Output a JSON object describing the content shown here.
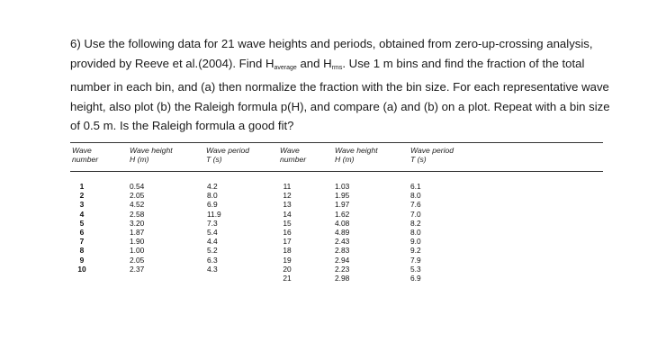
{
  "problem": {
    "line1": "6) Use the following data for 21 wave heights and periods, obtained from zero-up-crossing analysis,",
    "line2": "provided by Reeve et al.(2004).  Find H",
    "sub_average": "average",
    "and_text": " and H",
    "sub_rms": "rms",
    "line2_end": ". Use 1 m bins and find the fraction of the total",
    "line3": "number in each bin, and (a) then normalize the fraction with the bin size. For each representative wave",
    "line4": "height, also plot (b) the Raleigh formula p(H), and compare (a) and (b) on a plot. Repeat with a bin size",
    "line5": "of 0.5 m. Is the Raleigh formula a good fit?"
  },
  "table": {
    "headers": {
      "wave_number_1": "Wave",
      "wave_number_2": "number",
      "wave_height_1": "Wave height",
      "wave_height_2": "H (m)",
      "wave_period_1": "Wave period",
      "wave_period_2": "T (s)",
      "wave_number_b1": "Wave",
      "wave_number_b2": "number",
      "wave_height_b1": "Wave height",
      "wave_height_b2": "H (m)",
      "wave_period_b1": "Wave period",
      "wave_period_b2": "T (s)"
    },
    "left": {
      "numbers": [
        "1",
        "2",
        "3",
        "4",
        "5",
        "6",
        "7",
        "8",
        "9",
        "10"
      ],
      "heights": [
        "0.54",
        "2.05",
        "4.52",
        "2.58",
        "3.20",
        "1.87",
        "1.90",
        "1.00",
        "2.05",
        "2.37"
      ],
      "periods": [
        "4.2",
        "8.0",
        "6.9",
        "11.9",
        "7.3",
        "5.4",
        "4.4",
        "5.2",
        "6.3",
        "4.3"
      ]
    },
    "right": {
      "numbers": [
        "11",
        "12",
        "13",
        "14",
        "15",
        "16",
        "17",
        "18",
        "19",
        "20",
        "21"
      ],
      "heights": [
        "1.03",
        "1.95",
        "1.97",
        "1.62",
        "4.08",
        "4.89",
        "2.43",
        "2.83",
        "2.94",
        "2.23",
        "2.98"
      ],
      "periods": [
        "6.1",
        "8.0",
        "7.6",
        "7.0",
        "8.2",
        "8.0",
        "9.0",
        "9.2",
        "7.9",
        "5.3",
        "6.9"
      ]
    }
  }
}
